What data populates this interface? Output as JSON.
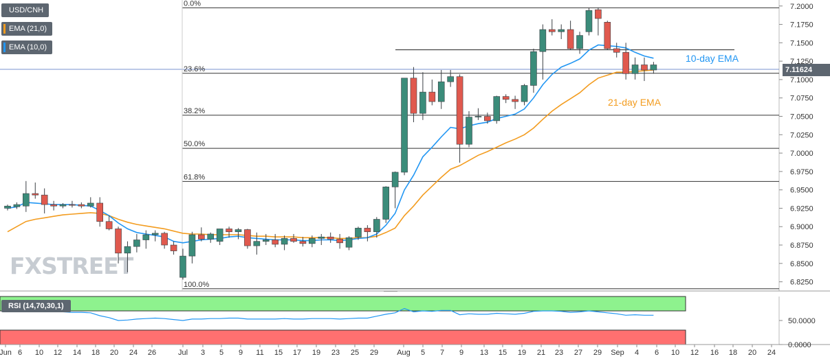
{
  "symbol": "USD/CNH",
  "legend": [
    {
      "label": "EMA (21,0)",
      "color": "#f39c1f"
    },
    {
      "label": "EMA (10,0)",
      "color": "#2196f3"
    }
  ],
  "last_price": "7.11624",
  "watermark": {
    "prefix": "FX",
    "x": "X",
    "suffix": "STREET"
  },
  "rsi_label": "RSI (14,70,30,1)",
  "chart_data": {
    "type": "candlestick",
    "y_axis": {
      "range": [
        6.8125,
        7.2063
      ],
      "ticks": [
        "7.2000",
        "7.1750",
        "7.1500",
        "7.1250",
        "7.1000",
        "7.0750",
        "7.0500",
        "7.0250",
        "7.0000",
        "6.9750",
        "6.9500",
        "6.9250",
        "6.9000",
        "6.8750",
        "6.8500",
        "6.8250"
      ]
    },
    "x_axis": {
      "labels": [
        "Jun",
        "6",
        "10",
        "12",
        "14",
        "18",
        "20",
        "24",
        "26",
        "Jul",
        "3",
        "5",
        "9",
        "11",
        "15",
        "17",
        "19",
        "23",
        "25",
        "29",
        "Aug",
        "5",
        "7",
        "9",
        "13",
        "15",
        "19",
        "21",
        "23",
        "27",
        "29",
        "Sep",
        "4",
        "6",
        "10",
        "12",
        "16",
        "18",
        "20",
        "24"
      ]
    },
    "horizontal_resistance": 7.1405,
    "fibonacci": [
      {
        "label": "0.0%",
        "value": 7.1975
      },
      {
        "label": "23.6%",
        "value": 7.1085
      },
      {
        "label": "38.2%",
        "value": 7.0515
      },
      {
        "label": "50.0%",
        "value": 7.0065
      },
      {
        "label": "61.8%",
        "value": 6.9615
      },
      {
        "label": "100.0%",
        "value": 6.8155
      }
    ],
    "annotations": [
      {
        "text": "10-day EMA",
        "color": "#2196f3"
      },
      {
        "text": "21-day EMA",
        "color": "#f39c1f"
      }
    ],
    "candles": [
      [
        6.925,
        6.93,
        6.922,
        6.928
      ],
      [
        6.927,
        6.933,
        6.924,
        6.93
      ],
      [
        6.928,
        6.962,
        6.92,
        6.945
      ],
      [
        6.945,
        6.96,
        6.938,
        6.943
      ],
      [
        6.943,
        6.952,
        6.918,
        6.93
      ],
      [
        6.93,
        6.935,
        6.922,
        6.928
      ],
      [
        6.928,
        6.932,
        6.925,
        6.93
      ],
      [
        6.93,
        6.935,
        6.926,
        6.929
      ],
      [
        6.93,
        6.933,
        6.925,
        6.928
      ],
      [
        6.928,
        6.94,
        6.926,
        6.932
      ],
      [
        6.932,
        6.94,
        6.9,
        6.907
      ],
      [
        6.907,
        6.915,
        6.895,
        6.897
      ],
      [
        6.897,
        6.9,
        6.85,
        6.864
      ],
      [
        6.864,
        6.88,
        6.838,
        6.873
      ],
      [
        6.873,
        6.89,
        6.865,
        6.882
      ],
      [
        6.882,
        6.895,
        6.87,
        6.889
      ],
      [
        6.889,
        6.895,
        6.88,
        6.891
      ],
      [
        6.891,
        6.893,
        6.87,
        6.875
      ],
      [
        6.875,
        6.88,
        6.862,
        6.867
      ],
      [
        6.831,
        6.87,
        6.828,
        6.86
      ],
      [
        6.86,
        6.893,
        6.85,
        6.889
      ],
      [
        6.889,
        6.899,
        6.88,
        6.883
      ],
      [
        6.883,
        6.892,
        6.878,
        6.89
      ],
      [
        6.88,
        6.897,
        6.875,
        6.897
      ],
      [
        6.897,
        6.9,
        6.885,
        6.893
      ],
      [
        6.893,
        6.898,
        6.883,
        6.896
      ],
      [
        6.896,
        6.897,
        6.87,
        6.874
      ],
      [
        6.874,
        6.892,
        6.862,
        6.88
      ],
      [
        6.88,
        6.89,
        6.875,
        6.882
      ],
      [
        6.882,
        6.89,
        6.872,
        6.876
      ],
      [
        6.876,
        6.888,
        6.868,
        6.884
      ],
      [
        6.884,
        6.89,
        6.878,
        6.88
      ],
      [
        6.88,
        6.886,
        6.873,
        6.877
      ],
      [
        6.877,
        6.888,
        6.872,
        6.884
      ],
      [
        6.884,
        6.89,
        6.875,
        6.886
      ],
      [
        6.886,
        6.892,
        6.878,
        6.883
      ],
      [
        6.883,
        6.89,
        6.87,
        6.878
      ],
      [
        6.872,
        6.887,
        6.868,
        6.885
      ],
      [
        6.886,
        6.9,
        6.882,
        6.898
      ],
      [
        6.898,
        6.902,
        6.88,
        6.893
      ],
      [
        6.893,
        6.913,
        6.885,
        6.91
      ],
      [
        6.91,
        6.955,
        6.905,
        6.954
      ],
      [
        6.954,
        6.975,
        6.925,
        6.974
      ],
      [
        6.974,
        7.102,
        6.97,
        7.102
      ],
      [
        7.102,
        7.117,
        7.042,
        7.054
      ],
      [
        7.054,
        7.11,
        7.045,
        7.083
      ],
      [
        7.083,
        7.1,
        7.065,
        7.07
      ],
      [
        7.07,
        7.113,
        7.06,
        7.097
      ],
      [
        7.097,
        7.113,
        7.09,
        7.104
      ],
      [
        7.104,
        7.107,
        6.987,
        7.012
      ],
      [
        7.012,
        7.057,
        7.008,
        7.049
      ],
      [
        7.049,
        7.061,
        7.045,
        7.05
      ],
      [
        7.05,
        7.055,
        7.04,
        7.044
      ],
      [
        7.044,
        7.078,
        7.04,
        7.077
      ],
      [
        7.077,
        7.08,
        7.068,
        7.073
      ],
      [
        7.073,
        7.078,
        7.06,
        7.07
      ],
      [
        7.07,
        7.094,
        7.065,
        7.092
      ],
      [
        7.092,
        7.142,
        7.082,
        7.138
      ],
      [
        7.138,
        7.175,
        7.1,
        7.168
      ],
      [
        7.168,
        7.182,
        7.16,
        7.165
      ],
      [
        7.165,
        7.175,
        7.155,
        7.168
      ],
      [
        7.168,
        7.18,
        7.14,
        7.142
      ],
      [
        7.142,
        7.165,
        7.135,
        7.16
      ],
      [
        7.165,
        7.197,
        7.16,
        7.194
      ],
      [
        7.195,
        7.198,
        7.16,
        7.183
      ],
      [
        7.178,
        7.18,
        7.14,
        7.142
      ],
      [
        7.142,
        7.15,
        7.13,
        7.137
      ],
      [
        7.137,
        7.15,
        7.1,
        7.108
      ],
      [
        7.108,
        7.13,
        7.1,
        7.12
      ],
      [
        7.12,
        7.13,
        7.098,
        7.113
      ],
      [
        7.113,
        7.124,
        7.108,
        7.12
      ]
    ],
    "ema10": [
      6.925,
      6.927,
      6.933,
      6.932,
      6.931,
      6.93,
      6.93,
      6.93,
      6.929,
      6.928,
      6.922,
      6.915,
      6.905,
      6.897,
      6.892,
      6.89,
      6.888,
      6.886,
      6.88,
      6.878,
      6.88,
      6.882,
      6.883,
      6.884,
      6.886,
      6.887,
      6.885,
      6.884,
      6.883,
      6.882,
      6.882,
      6.882,
      6.881,
      6.881,
      6.882,
      6.882,
      6.881,
      6.882,
      6.884,
      6.885,
      6.89,
      6.902,
      6.918,
      6.95,
      6.97,
      6.995,
      7.008,
      7.022,
      7.035,
      7.033,
      7.037,
      7.04,
      7.042,
      7.047,
      7.05,
      7.053,
      7.06,
      7.075,
      7.093,
      7.107,
      7.117,
      7.122,
      7.128,
      7.14,
      7.147,
      7.146,
      7.145,
      7.143,
      7.137,
      7.132,
      7.129
    ],
    "ema21": [
      6.893,
      6.9,
      6.907,
      6.91,
      6.912,
      6.914,
      6.916,
      6.917,
      6.918,
      6.919,
      6.918,
      6.915,
      6.91,
      6.906,
      6.903,
      6.901,
      6.899,
      6.897,
      6.894,
      6.891,
      6.89,
      6.89,
      6.889,
      6.889,
      6.889,
      6.889,
      6.888,
      6.887,
      6.887,
      6.886,
      6.886,
      6.886,
      6.885,
      6.885,
      6.885,
      6.885,
      6.884,
      6.884,
      6.885,
      6.885,
      6.887,
      6.892,
      6.898,
      6.915,
      6.928,
      6.943,
      6.955,
      6.967,
      6.978,
      6.983,
      6.99,
      6.997,
      7.002,
      7.008,
      7.014,
      7.019,
      7.025,
      7.034,
      7.046,
      7.057,
      7.066,
      7.074,
      7.082,
      7.093,
      7.102,
      7.106,
      7.11,
      7.11,
      7.111,
      7.112,
      7.113
    ],
    "rsi": {
      "range": [
        0,
        100
      ],
      "ticks": [
        "50.0000",
        "0.0000"
      ],
      "overbought": 70,
      "oversold": 30,
      "values": [
        70,
        69,
        72,
        71,
        69,
        68,
        68,
        67,
        67,
        66,
        60,
        56,
        50,
        51,
        53,
        54,
        55,
        54,
        52,
        50,
        53,
        53,
        54,
        54,
        55,
        55,
        53,
        53,
        53,
        53,
        54,
        53,
        53,
        54,
        54,
        54,
        53,
        54,
        55,
        55,
        59,
        63,
        66,
        75,
        68,
        70,
        69,
        71,
        71,
        62,
        64,
        63,
        63,
        65,
        64,
        63,
        65,
        69,
        70,
        70,
        69,
        67,
        68,
        70,
        68,
        66,
        64,
        61,
        62,
        61,
        61
      ]
    }
  }
}
